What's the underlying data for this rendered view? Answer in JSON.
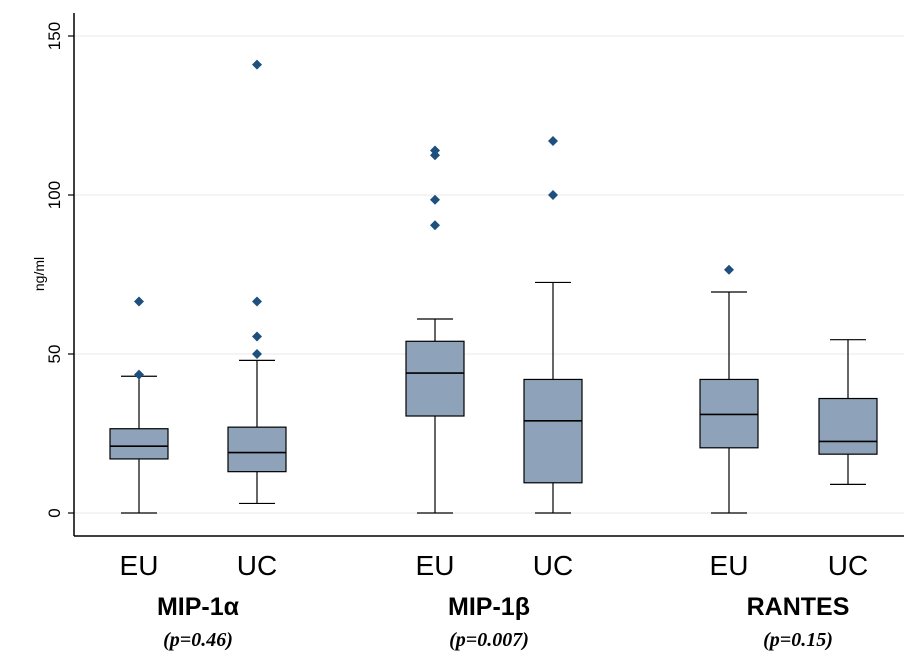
{
  "chart_data": {
    "type": "boxplot",
    "ylabel": "ng/ml",
    "ylim": [
      0,
      150
    ],
    "yticks": [
      0,
      50,
      100,
      150
    ],
    "grid": true,
    "box_color": "#8ea3b9",
    "outlier_color": "#1f4f7c",
    "groups": [
      {
        "name": "MIP-1α",
        "pvalue": "(p=0.46)",
        "boxes": [
          {
            "category": "EU",
            "min": 0,
            "q1": 17,
            "median": 21,
            "q3": 26.5,
            "max": 43,
            "outliers": [
              43.5,
              66.5
            ]
          },
          {
            "category": "UC",
            "min": 3,
            "q1": 13,
            "median": 19,
            "q3": 27,
            "max": 48,
            "outliers": [
              50,
              55.5,
              66.5,
              141
            ]
          }
        ]
      },
      {
        "name": "MIP-1β",
        "pvalue": "(p=0.007)",
        "boxes": [
          {
            "category": "EU",
            "min": 0,
            "q1": 30.5,
            "median": 44,
            "q3": 54,
            "max": 61,
            "outliers": [
              90.5,
              98.5,
              112.5,
              114
            ]
          },
          {
            "category": "UC",
            "min": 0,
            "q1": 9.5,
            "median": 29,
            "q3": 42,
            "max": 72.5,
            "outliers": [
              100,
              117
            ]
          }
        ]
      },
      {
        "name": "RANTES",
        "pvalue": "(p=0.15)",
        "boxes": [
          {
            "category": "EU",
            "min": 0,
            "q1": 20.5,
            "median": 31,
            "q3": 42,
            "max": 69.5,
            "outliers": [
              76.5
            ]
          },
          {
            "category": "UC",
            "min": 9,
            "q1": 18.5,
            "median": 22.5,
            "q3": 36,
            "max": 54.5,
            "outliers": []
          }
        ]
      }
    ]
  }
}
